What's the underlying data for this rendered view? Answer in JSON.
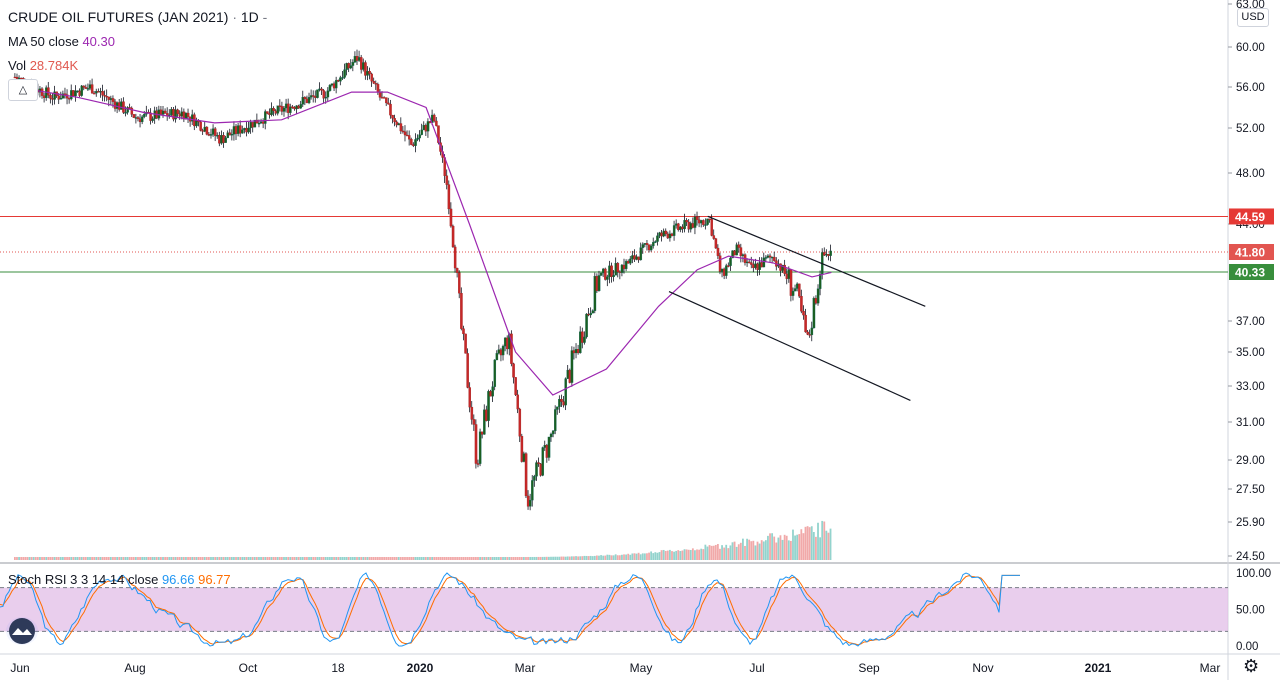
{
  "header": {
    "symbol": "CRUDE OIL FUTURES (JAN 2021)",
    "sep": "·",
    "interval": "1D",
    "dash": "-",
    "ma_label": "MA 50 close",
    "ma_value": "40.30",
    "vol_label": "Vol",
    "vol_value": "28.784K",
    "collapse_icon": "chevron-up-icon",
    "currency": "USD"
  },
  "rsi_legend": {
    "label": "Stoch RSI 3 3 14 14 close",
    "k": "96.66",
    "d": "96.77"
  },
  "price_axis": {
    "ticks": [
      "63.00",
      "60.00",
      "56.00",
      "52.00",
      "48.00",
      "44.00",
      "37.00",
      "35.00",
      "33.00",
      "31.00",
      "29.00",
      "27.50",
      "25.90",
      "24.50"
    ],
    "badges": [
      {
        "label": "44.59",
        "value": 44.59,
        "color": "#e53935",
        "line": "solid"
      },
      {
        "label": "41.80",
        "value": 41.8,
        "color": "#e25550",
        "line": "dotted"
      },
      {
        "label": "40.33",
        "value": 40.33,
        "color": "#388e3c",
        "line": "solid"
      }
    ]
  },
  "rsi_axis": {
    "ticks": [
      "100.00",
      "50.00",
      "0.00"
    ]
  },
  "time_axis": [
    "Jun",
    "Aug",
    "Oct",
    "18",
    "2020",
    "Mar",
    "May",
    "Jul",
    "Sep",
    "Nov",
    "2021",
    "Mar"
  ],
  "chart_data": {
    "type": "candlestick",
    "title": "CRUDE OIL FUTURES (JAN 2021)",
    "interval": "1D",
    "currency": "USD",
    "scale": "log",
    "x_range": [
      "May 2019",
      "Mar 2021"
    ],
    "y_range": [
      24.5,
      63.0
    ],
    "last_close": 41.8,
    "ma50_last": 40.3,
    "volume_last": "28.784K",
    "horizontal_levels": [
      {
        "value": 44.59,
        "color": "#e53935"
      },
      {
        "value": 40.33,
        "color": "#388e3c"
      }
    ],
    "price_path": [
      {
        "t": "2019-05-20",
        "p": 57.0
      },
      {
        "t": "2019-06-15",
        "p": 55.0
      },
      {
        "t": "2019-07-10",
        "p": 56.0
      },
      {
        "t": "2019-08-10",
        "p": 53.0
      },
      {
        "t": "2019-09-10",
        "p": 53.5
      },
      {
        "t": "2019-10-05",
        "p": 51.0
      },
      {
        "t": "2019-11-10",
        "p": 53.5
      },
      {
        "t": "2019-12-15",
        "p": 55.5
      },
      {
        "t": "2020-01-05",
        "p": 59.0
      },
      {
        "t": "2020-01-20",
        "p": 55.0
      },
      {
        "t": "2020-02-10",
        "p": 50.5
      },
      {
        "t": "2020-02-25",
        "p": 53.0
      },
      {
        "t": "2020-03-05",
        "p": 47.0
      },
      {
        "t": "2020-03-15",
        "p": 36.0
      },
      {
        "t": "2020-03-25",
        "p": 29.0
      },
      {
        "t": "2020-04-05",
        "p": 33.5
      },
      {
        "t": "2020-04-15",
        "p": 36.0
      },
      {
        "t": "2020-04-28",
        "p": 27.0
      },
      {
        "t": "2020-05-15",
        "p": 30.5
      },
      {
        "t": "2020-06-01",
        "p": 35.5
      },
      {
        "t": "2020-06-15",
        "p": 40.0
      },
      {
        "t": "2020-07-05",
        "p": 41.0
      },
      {
        "t": "2020-07-25",
        "p": 43.0
      },
      {
        "t": "2020-08-15",
        "p": 44.0
      },
      {
        "t": "2020-08-28",
        "p": 44.4
      },
      {
        "t": "2020-09-05",
        "p": 40.0
      },
      {
        "t": "2020-09-15",
        "p": 42.0
      },
      {
        "t": "2020-09-25",
        "p": 40.5
      },
      {
        "t": "2020-10-10",
        "p": 41.5
      },
      {
        "t": "2020-10-25",
        "p": 39.0
      },
      {
        "t": "2020-11-02",
        "p": 35.5
      },
      {
        "t": "2020-11-12",
        "p": 41.5
      },
      {
        "t": "2020-11-18",
        "p": 41.8
      }
    ],
    "ma50_path": [
      {
        "t": "2019-05-20",
        "p": 56.0
      },
      {
        "t": "2019-07-01",
        "p": 55.0
      },
      {
        "t": "2019-08-15",
        "p": 53.5
      },
      {
        "t": "2019-10-01",
        "p": 52.5
      },
      {
        "t": "2019-11-15",
        "p": 52.8
      },
      {
        "t": "2020-01-01",
        "p": 55.5
      },
      {
        "t": "2020-01-25",
        "p": 55.5
      },
      {
        "t": "2020-02-20",
        "p": 54.0
      },
      {
        "t": "2020-03-20",
        "p": 44.0
      },
      {
        "t": "2020-04-20",
        "p": 35.0
      },
      {
        "t": "2020-05-15",
        "p": 32.5
      },
      {
        "t": "2020-06-20",
        "p": 34.0
      },
      {
        "t": "2020-07-25",
        "p": 38.0
      },
      {
        "t": "2020-08-20",
        "p": 40.5
      },
      {
        "t": "2020-09-10",
        "p": 41.5
      },
      {
        "t": "2020-10-10",
        "p": 41.0
      },
      {
        "t": "2020-11-05",
        "p": 40.0
      },
      {
        "t": "2020-11-18",
        "p": 40.3
      }
    ],
    "trendlines": [
      {
        "name": "upper",
        "from": {
          "t": "2020-08-27",
          "p": 44.6
        },
        "to": {
          "t": "2021-01-20",
          "p": 38.0
        }
      },
      {
        "name": "lower",
        "from": {
          "t": "2020-08-01",
          "p": 39.0
        },
        "to": {
          "t": "2021-01-10",
          "p": 32.2
        }
      }
    ],
    "stoch_rsi": {
      "params": "3 3 14 14 close",
      "k_last": 96.66,
      "d_last": 96.77,
      "band": [
        20,
        80
      ],
      "y_range": [
        0,
        100
      ]
    }
  }
}
